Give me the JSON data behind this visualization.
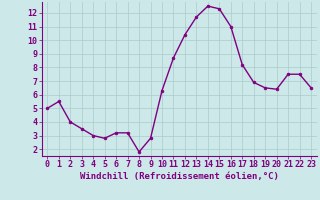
{
  "x": [
    0,
    1,
    2,
    3,
    4,
    5,
    6,
    7,
    8,
    9,
    10,
    11,
    12,
    13,
    14,
    15,
    16,
    17,
    18,
    19,
    20,
    21,
    22,
    23
  ],
  "y": [
    5.0,
    5.5,
    4.0,
    3.5,
    3.0,
    2.8,
    3.2,
    3.2,
    1.8,
    2.8,
    6.3,
    8.7,
    10.4,
    11.7,
    12.5,
    12.3,
    11.0,
    8.2,
    6.9,
    6.5,
    6.4,
    7.5,
    7.5,
    6.5
  ],
  "line_color": "#800080",
  "marker": "o",
  "marker_size": 2.0,
  "bg_color": "#cce8e8",
  "grid_color": "#aacccc",
  "xlabel": "Windchill (Refroidissement éolien,°C)",
  "xlabel_fontsize": 6.5,
  "ylim": [
    1.5,
    12.8
  ],
  "xlim": [
    -0.5,
    23.5
  ],
  "yticks": [
    2,
    3,
    4,
    5,
    6,
    7,
    8,
    9,
    10,
    11,
    12
  ],
  "xticks": [
    0,
    1,
    2,
    3,
    4,
    5,
    6,
    7,
    8,
    9,
    10,
    11,
    12,
    13,
    14,
    15,
    16,
    17,
    18,
    19,
    20,
    21,
    22,
    23
  ],
  "tick_label_fontsize": 6.0,
  "tick_color": "#800080",
  "spine_color": "#800080",
  "axis_bg": "#cce8e8",
  "linewidth": 1.0
}
